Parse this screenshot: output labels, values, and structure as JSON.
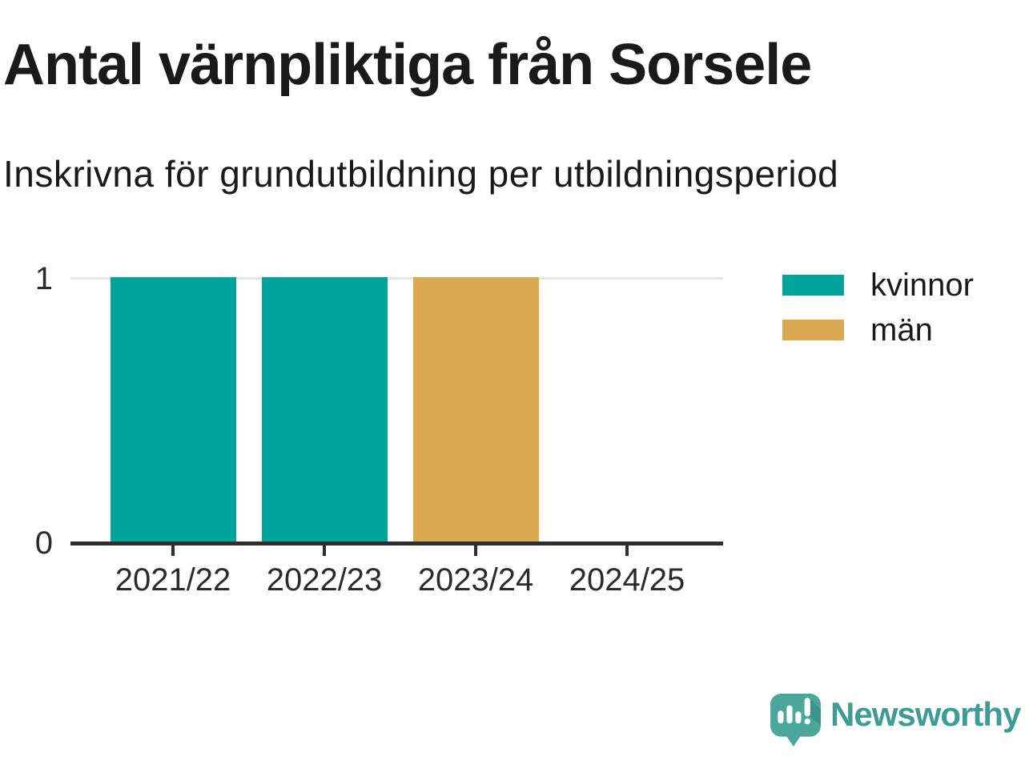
{
  "title": "Antal värnpliktiga från Sorsele",
  "subtitle": "Inskrivna för grundutbildning per utbildningsperiod",
  "chart_data": {
    "type": "bar",
    "stacked": true,
    "title": "Antal värnpliktiga från Sorsele",
    "subtitle": "Inskrivna för grundutbildning per utbildningsperiod",
    "categories": [
      "2021/22",
      "2022/23",
      "2023/24",
      "2024/25"
    ],
    "series": [
      {
        "name": "kvinnor",
        "color": "#00A49B",
        "values": [
          1,
          1,
          0,
          0
        ]
      },
      {
        "name": "män",
        "color": "#D9AA52",
        "values": [
          0,
          0,
          1,
          0
        ]
      }
    ],
    "xlabel": "",
    "ylabel": "",
    "ylim": [
      0,
      1
    ],
    "yticks": [
      0,
      1
    ],
    "grid": "horizontal",
    "legend_position": "right"
  },
  "style": {
    "axis_color": "#2E2E2E",
    "grid_color": "#E4E4E4",
    "tick_label_color": "#2b2b2b",
    "text_color": "#1a1a1a"
  },
  "branding": {
    "wordmark": "Newsworthy",
    "wordmark_color": "#3F9C94",
    "icon": "speech-bubble-bar-chart-icon",
    "icon_color": "#4BA69C",
    "icon_shadow_color": "#3D948B"
  }
}
